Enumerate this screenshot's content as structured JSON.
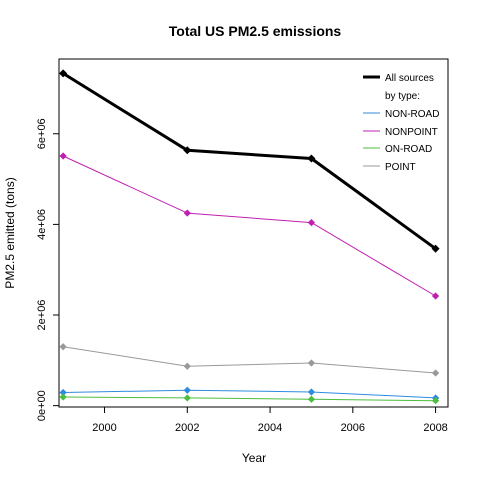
{
  "chart_data": {
    "type": "line",
    "title": "Total US PM2.5 emissions",
    "xlabel": "Year",
    "ylabel": "PM2.5 emitted (tons)",
    "x": [
      1999,
      2002,
      2005,
      2008
    ],
    "xlim": [
      1998.9,
      2008.3
    ],
    "ylim": [
      -30000,
      7650000
    ],
    "xticks": [
      2000,
      2002,
      2004,
      2006,
      2008
    ],
    "xtick_labels": [
      "2000",
      "2002",
      "2004",
      "2006",
      "2008"
    ],
    "yticks": [
      0,
      2000000,
      4000000,
      6000000
    ],
    "ytick_labels": [
      "0e+00",
      "2e+06",
      "4e+06",
      "6e+06"
    ],
    "grid": false,
    "legend_position": "top-right",
    "legend_subtitle": "by type:",
    "series": [
      {
        "name": "All sources",
        "color": "#000000",
        "values": [
          7332000,
          5636000,
          5454000,
          3464000
        ]
      },
      {
        "name": "NON-ROAD",
        "color": "#2E8BE0",
        "values": [
          290000,
          340000,
          300000,
          170000
        ]
      },
      {
        "name": "NONPOINT",
        "color": "#C020B0",
        "values": [
          5510000,
          4250000,
          4040000,
          2420000
        ]
      },
      {
        "name": "ON-ROAD",
        "color": "#4DBD3F",
        "values": [
          190000,
          170000,
          140000,
          110000
        ]
      },
      {
        "name": "POINT",
        "color": "#999999",
        "values": [
          1300000,
          870000,
          940000,
          720000
        ]
      }
    ]
  }
}
